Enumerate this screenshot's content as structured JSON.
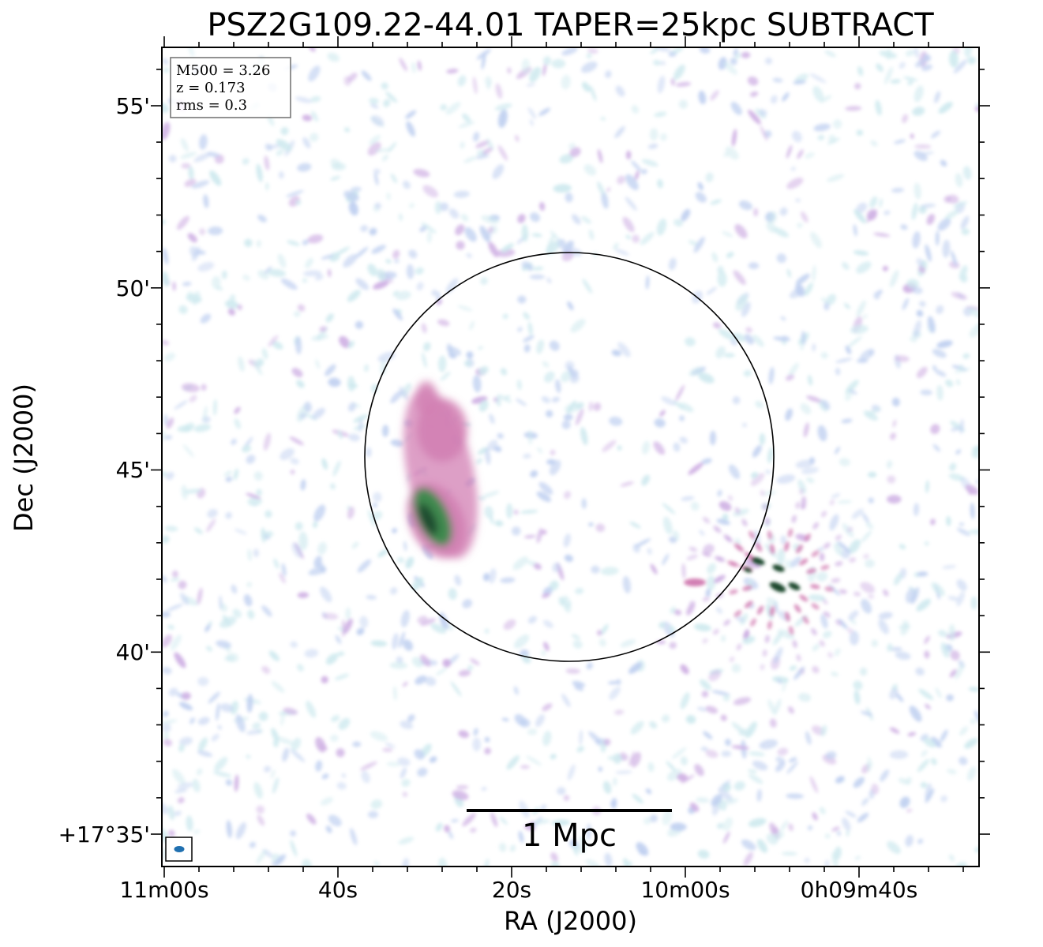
{
  "figure": {
    "title": "PSZ2G109.22-44.01 TAPER=25kpc SUBTRACT",
    "xlabel": "RA (J2000)",
    "ylabel": "Dec (J2000)"
  },
  "info_box": {
    "lines": [
      "M500 = 3.26",
      "z = 0.173",
      "rms = 0.3"
    ]
  },
  "scale_bar": {
    "label": "1 Mpc"
  },
  "axes": {
    "x_ticks": [
      "11m00s",
      "40s",
      "20s",
      "10m00s",
      "0h09m40s"
    ],
    "y_ticks": [
      "+17°35'",
      "40'",
      "45'",
      "50'",
      "55'"
    ]
  },
  "colors": {
    "frame": "#000000",
    "noise_light": "#c6e6ec",
    "noise_blue": "#b5c8ee",
    "noise_purple": "#c7a3df",
    "emission_pink": "#d27fb3",
    "emission_green": "#3f8a4f",
    "emission_dark": "#1f4a2e",
    "beam": "#2070b0"
  }
}
